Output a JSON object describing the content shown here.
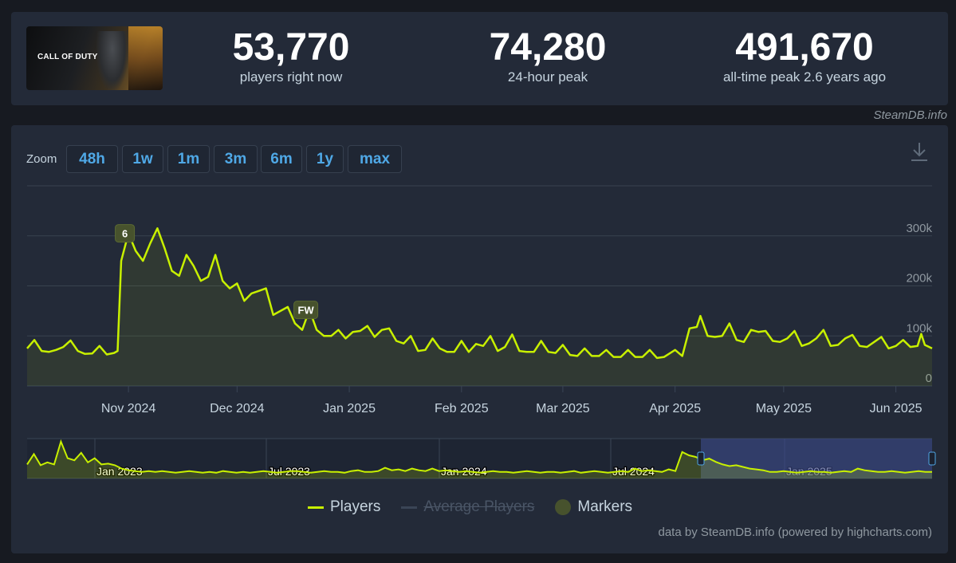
{
  "header": {
    "game_logo_text": "CALL OF DUTY",
    "stats": [
      {
        "value": "53,770",
        "label": "players right now"
      },
      {
        "value": "74,280",
        "label": "24-hour peak"
      },
      {
        "value": "491,670",
        "label": "all-time peak 2.6 years ago"
      }
    ],
    "attribution": "SteamDB.info"
  },
  "toolbar": {
    "zoom_label": "Zoom",
    "zoom_options": [
      "48h",
      "1w",
      "1m",
      "3m",
      "6m",
      "1y",
      "max"
    ]
  },
  "legend": {
    "players": "Players",
    "average_players": "Average Players",
    "markers": "Markers"
  },
  "credits": "data by SteamDB.info (powered by highcharts.com)",
  "colors": {
    "players_line": "#c8f000",
    "average_line": "#3a4556",
    "marker_fill": "#47522d",
    "zoom_text": "#4fa8e6",
    "navigator_selection": "#3c4a87"
  },
  "chart_data": {
    "type": "line",
    "y_tick_labels": [
      "0",
      "100k",
      "200k",
      "300k"
    ],
    "y_ticks": [
      0,
      100000,
      200000,
      300000
    ],
    "ylim": [
      0,
      400000
    ],
    "x_labels": [
      "Nov 2024",
      "Dec 2024",
      "Jan 2025",
      "Feb 2025",
      "Mar 2025",
      "Apr 2025",
      "May 2025",
      "Jun 2025"
    ],
    "x_label_dates": [
      "2024-11-01",
      "2024-12-01",
      "2025-01-01",
      "2025-02-01",
      "2025-03-01",
      "2025-04-01",
      "2025-05-01",
      "2025-06-01"
    ],
    "xlim": [
      "2024-10-04",
      "2025-06-11"
    ],
    "series": [
      {
        "name": "Players",
        "points": [
          [
            "2024-10-04",
            75000
          ],
          [
            "2024-10-06",
            92000
          ],
          [
            "2024-10-08",
            70000
          ],
          [
            "2024-10-10",
            68000
          ],
          [
            "2024-10-12",
            72000
          ],
          [
            "2024-10-14",
            78000
          ],
          [
            "2024-10-16",
            91000
          ],
          [
            "2024-10-18",
            70000
          ],
          [
            "2024-10-20",
            64000
          ],
          [
            "2024-10-22",
            65000
          ],
          [
            "2024-10-24",
            80000
          ],
          [
            "2024-10-26",
            63000
          ],
          [
            "2024-10-28",
            66000
          ],
          [
            "2024-10-29",
            70000
          ],
          [
            "2024-10-30",
            250000
          ],
          [
            "2024-11-01",
            305000
          ],
          [
            "2024-11-03",
            270000
          ],
          [
            "2024-11-05",
            250000
          ],
          [
            "2024-11-07",
            285000
          ],
          [
            "2024-11-09",
            315000
          ],
          [
            "2024-11-11",
            275000
          ],
          [
            "2024-11-13",
            230000
          ],
          [
            "2024-11-15",
            220000
          ],
          [
            "2024-11-17",
            262000
          ],
          [
            "2024-11-19",
            240000
          ],
          [
            "2024-11-21",
            210000
          ],
          [
            "2024-11-23",
            218000
          ],
          [
            "2024-11-25",
            262000
          ],
          [
            "2024-11-27",
            210000
          ],
          [
            "2024-11-29",
            195000
          ],
          [
            "2024-12-01",
            205000
          ],
          [
            "2024-12-03",
            170000
          ],
          [
            "2024-12-05",
            185000
          ],
          [
            "2024-12-07",
            190000
          ],
          [
            "2024-12-09",
            195000
          ],
          [
            "2024-12-11",
            142000
          ],
          [
            "2024-12-13",
            150000
          ],
          [
            "2024-12-15",
            158000
          ],
          [
            "2024-12-17",
            125000
          ],
          [
            "2024-12-19",
            112000
          ],
          [
            "2024-12-21",
            152000
          ],
          [
            "2024-12-23",
            112000
          ],
          [
            "2024-12-25",
            100000
          ],
          [
            "2024-12-27",
            100000
          ],
          [
            "2024-12-29",
            112000
          ],
          [
            "2024-12-31",
            95000
          ],
          [
            "2025-01-02",
            108000
          ],
          [
            "2025-01-04",
            110000
          ],
          [
            "2025-01-06",
            120000
          ],
          [
            "2025-01-08",
            98000
          ],
          [
            "2025-01-10",
            112000
          ],
          [
            "2025-01-12",
            115000
          ],
          [
            "2025-01-14",
            90000
          ],
          [
            "2025-01-16",
            85000
          ],
          [
            "2025-01-18",
            100000
          ],
          [
            "2025-01-20",
            70000
          ],
          [
            "2025-01-22",
            72000
          ],
          [
            "2025-01-24",
            95000
          ],
          [
            "2025-01-26",
            75000
          ],
          [
            "2025-01-28",
            68000
          ],
          [
            "2025-01-30",
            68000
          ],
          [
            "2025-02-01",
            90000
          ],
          [
            "2025-02-03",
            68000
          ],
          [
            "2025-02-05",
            84000
          ],
          [
            "2025-02-07",
            80000
          ],
          [
            "2025-02-09",
            100000
          ],
          [
            "2025-02-11",
            70000
          ],
          [
            "2025-02-13",
            78000
          ],
          [
            "2025-02-15",
            103000
          ],
          [
            "2025-02-17",
            70000
          ],
          [
            "2025-02-19",
            68000
          ],
          [
            "2025-02-21",
            68000
          ],
          [
            "2025-02-23",
            90000
          ],
          [
            "2025-02-25",
            68000
          ],
          [
            "2025-02-27",
            66000
          ],
          [
            "2025-03-01",
            82000
          ],
          [
            "2025-03-03",
            62000
          ],
          [
            "2025-03-05",
            60000
          ],
          [
            "2025-03-07",
            75000
          ],
          [
            "2025-03-09",
            60000
          ],
          [
            "2025-03-11",
            60000
          ],
          [
            "2025-03-13",
            72000
          ],
          [
            "2025-03-15",
            58000
          ],
          [
            "2025-03-17",
            58000
          ],
          [
            "2025-03-19",
            72000
          ],
          [
            "2025-03-21",
            58000
          ],
          [
            "2025-03-23",
            58000
          ],
          [
            "2025-03-25",
            72000
          ],
          [
            "2025-03-27",
            56000
          ],
          [
            "2025-03-29",
            58000
          ],
          [
            "2025-04-01",
            72000
          ],
          [
            "2025-04-03",
            60000
          ],
          [
            "2025-04-05",
            115000
          ],
          [
            "2025-04-07",
            118000
          ],
          [
            "2025-04-08",
            140000
          ],
          [
            "2025-04-10",
            100000
          ],
          [
            "2025-04-12",
            98000
          ],
          [
            "2025-04-14",
            100000
          ],
          [
            "2025-04-16",
            125000
          ],
          [
            "2025-04-18",
            92000
          ],
          [
            "2025-04-20",
            88000
          ],
          [
            "2025-04-22",
            112000
          ],
          [
            "2025-04-24",
            108000
          ],
          [
            "2025-04-26",
            110000
          ],
          [
            "2025-04-28",
            90000
          ],
          [
            "2025-04-30",
            88000
          ],
          [
            "2025-05-02",
            95000
          ],
          [
            "2025-05-04",
            110000
          ],
          [
            "2025-05-06",
            80000
          ],
          [
            "2025-05-08",
            85000
          ],
          [
            "2025-05-10",
            95000
          ],
          [
            "2025-05-12",
            112000
          ],
          [
            "2025-05-14",
            80000
          ],
          [
            "2025-05-16",
            82000
          ],
          [
            "2025-05-18",
            95000
          ],
          [
            "2025-05-20",
            102000
          ],
          [
            "2025-05-22",
            80000
          ],
          [
            "2025-05-24",
            78000
          ],
          [
            "2025-05-26",
            88000
          ],
          [
            "2025-05-28",
            98000
          ],
          [
            "2025-05-30",
            75000
          ],
          [
            "2025-06-01",
            80000
          ],
          [
            "2025-06-03",
            92000
          ],
          [
            "2025-06-05",
            78000
          ],
          [
            "2025-06-07",
            80000
          ],
          [
            "2025-06-08",
            104000
          ],
          [
            "2025-06-09",
            82000
          ],
          [
            "2025-06-11",
            75000
          ]
        ]
      }
    ],
    "markers": [
      {
        "label": "6",
        "date": "2024-10-31",
        "value": 305000
      },
      {
        "label": "FW",
        "date": "2024-12-20",
        "value": 152000
      }
    ],
    "navigator": {
      "x_labels": [
        "Jan 2023",
        "Jul 2023",
        "Jan 2024",
        "Jul 2024",
        "Jan 2025"
      ]
    }
  }
}
